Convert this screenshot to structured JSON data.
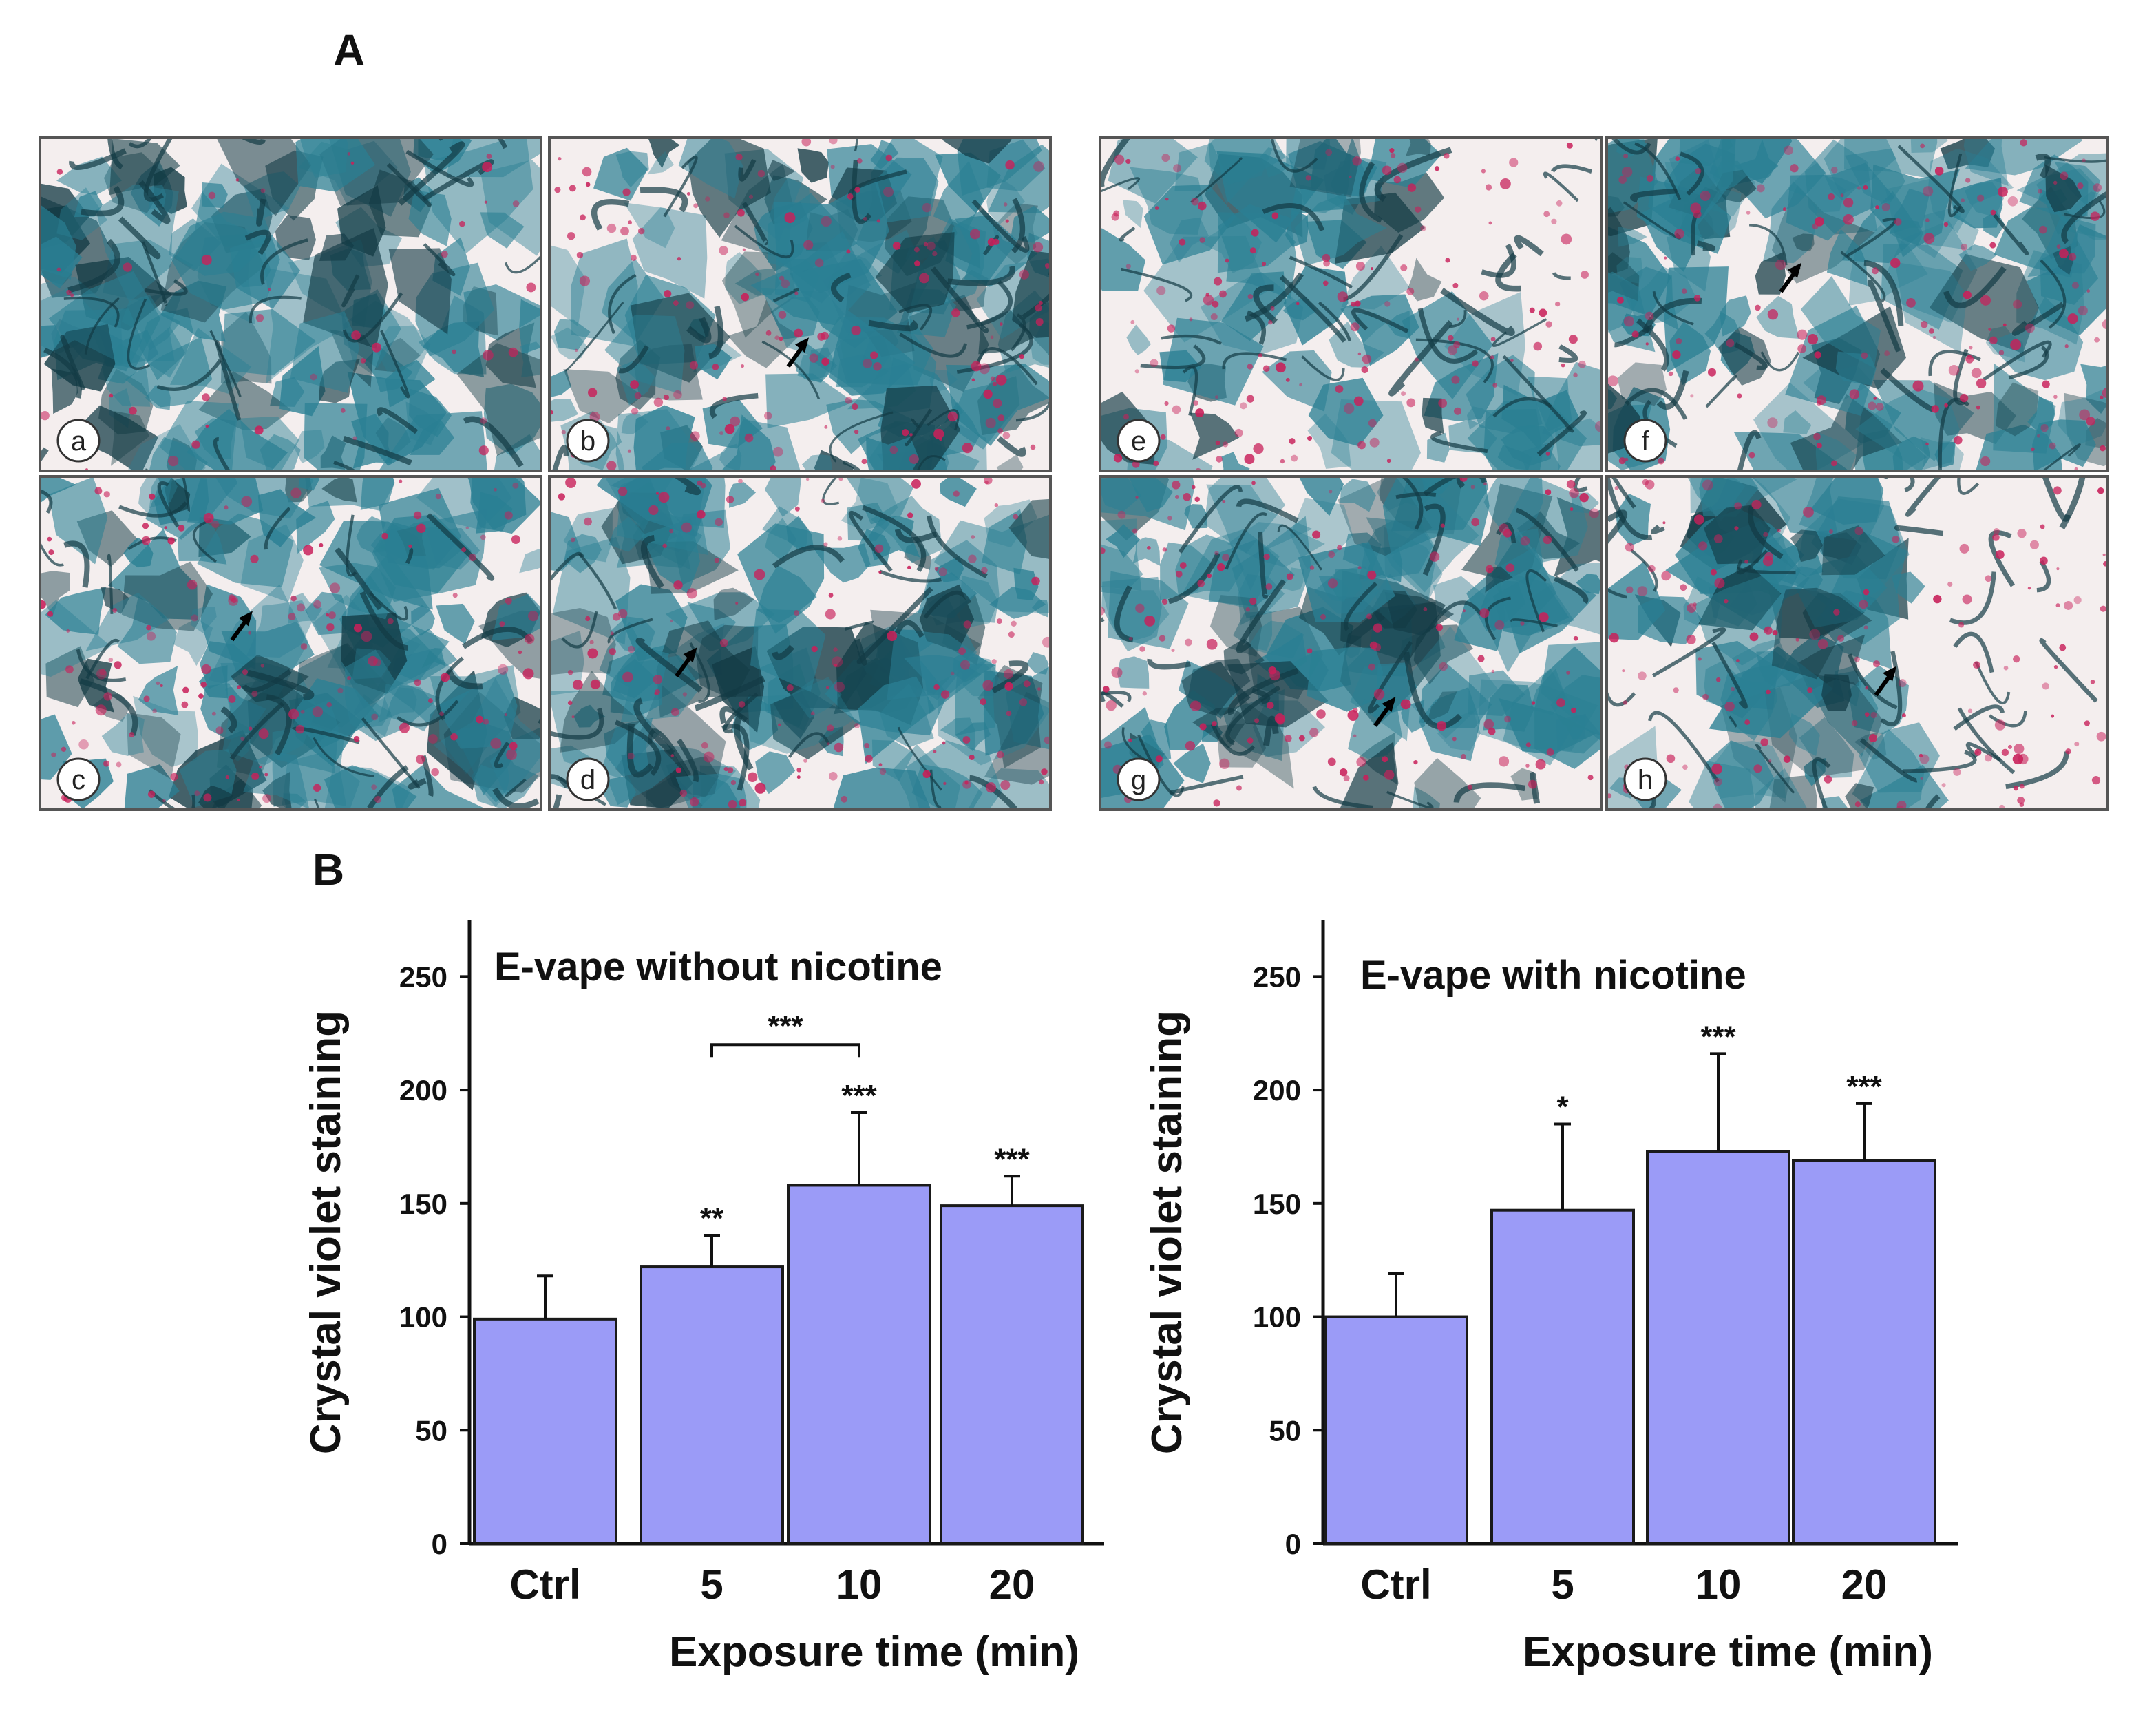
{
  "figure": {
    "panel_a_label": "A",
    "panel_b_label": "B"
  },
  "micrographs": [
    {
      "label": "a",
      "arrow": false
    },
    {
      "label": "b",
      "arrow": true
    },
    {
      "label": "c",
      "arrow": true
    },
    {
      "label": "d",
      "arrow": true
    },
    {
      "label": "e",
      "arrow": false
    },
    {
      "label": "f",
      "arrow": true
    },
    {
      "label": "g",
      "arrow": true
    },
    {
      "label": "h",
      "arrow": true
    }
  ],
  "colors": {
    "bar_fill": "#9b9bf7",
    "bar_stroke": "#1a1a1a",
    "stain_blue": "#2a7f93",
    "stain_dark": "#123a44",
    "stain_pink": "#c8205a",
    "background_tissue": "#f4eeee"
  },
  "chart_data": [
    {
      "type": "bar",
      "title": "E-vape without  nicotine",
      "xlabel": "Exposure time (min)",
      "ylabel": "Crystal violet staining",
      "categories": [
        "Ctrl",
        "5",
        "10",
        "20"
      ],
      "values": [
        99,
        122,
        158,
        149
      ],
      "errors": [
        19,
        14,
        32,
        13
      ],
      "significance": [
        "",
        "**",
        "***",
        "***"
      ],
      "bracket": {
        "from": 1,
        "to": 2,
        "label": "***"
      },
      "ylim": [
        0,
        275
      ],
      "yticks": [
        0,
        50,
        100,
        150,
        200,
        250
      ]
    },
    {
      "type": "bar",
      "title": "E-vape with  nicotine",
      "xlabel": "Exposure time (min)",
      "ylabel": "Crystal violet staining",
      "categories": [
        "Ctrl",
        "5",
        "10",
        "20"
      ],
      "values": [
        100,
        147,
        173,
        169
      ],
      "errors": [
        19,
        38,
        43,
        25
      ],
      "significance": [
        "",
        "*",
        "***",
        "***"
      ],
      "ylim": [
        0,
        275
      ],
      "yticks": [
        0,
        50,
        100,
        150,
        200,
        250
      ]
    }
  ]
}
